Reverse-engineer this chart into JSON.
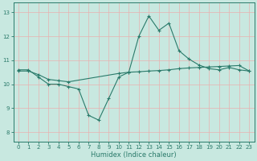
{
  "xlabel": "Humidex (Indice chaleur)",
  "background_color": "#c8e8e0",
  "grid_color": "#e8b0b0",
  "line_color": "#2a7a6a",
  "x_ticks": [
    0,
    1,
    2,
    3,
    4,
    5,
    6,
    7,
    8,
    9,
    10,
    11,
    12,
    13,
    14,
    15,
    16,
    17,
    18,
    19,
    20,
    21,
    22,
    23
  ],
  "y_ticks": [
    8,
    9,
    10,
    11,
    12,
    13
  ],
  "ylim": [
    7.6,
    13.4
  ],
  "xlim": [
    -0.5,
    23.5
  ],
  "line1_x": [
    0,
    1,
    2,
    3,
    4,
    5,
    6,
    7,
    8,
    9,
    10,
    11,
    12,
    13,
    14,
    15,
    16,
    17,
    18,
    19,
    20,
    21,
    22,
    23
  ],
  "line1_y": [
    10.6,
    10.6,
    10.3,
    10.0,
    10.0,
    9.9,
    9.8,
    8.7,
    8.5,
    9.4,
    10.3,
    10.5,
    12.0,
    12.85,
    12.25,
    12.55,
    11.4,
    11.05,
    10.8,
    10.65,
    10.6,
    10.7,
    10.6,
    10.55
  ],
  "line2_x": [
    0,
    1,
    2,
    3,
    4,
    5,
    10,
    11,
    12,
    13,
    14,
    15,
    16,
    17,
    18,
    19,
    20,
    21,
    22,
    23
  ],
  "line2_y": [
    10.55,
    10.55,
    10.4,
    10.2,
    10.15,
    10.1,
    10.45,
    10.5,
    10.52,
    10.55,
    10.57,
    10.6,
    10.65,
    10.68,
    10.7,
    10.72,
    10.74,
    10.76,
    10.78,
    10.55
  ],
  "tick_fontsize": 5.0,
  "xlabel_fontsize": 6.0,
  "linewidth": 0.8,
  "markersize": 3.5
}
